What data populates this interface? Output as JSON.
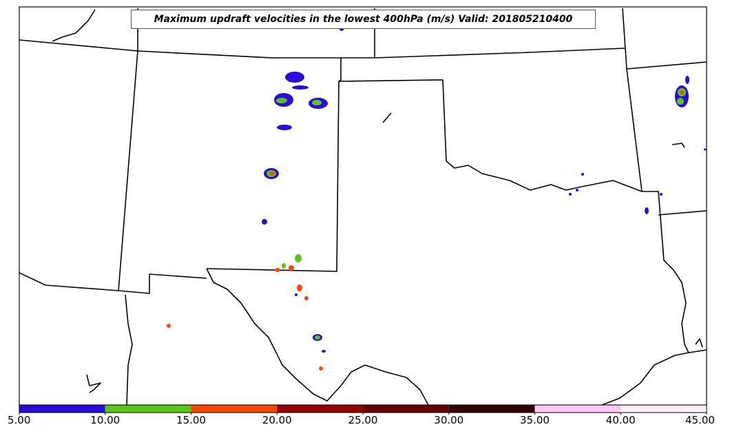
{
  "title": "Maximum updraft velocities in the lowest 400hPa (m/s) Valid: 201805210400",
  "colorbar": {
    "ticks": [
      "5.00",
      "10.00",
      "15.00",
      "20.00",
      "25.00",
      "30.00",
      "35.00",
      "40.00",
      "45.00"
    ],
    "bins": [
      {
        "range": [
          5,
          10
        ],
        "color": "#2a0be0"
      },
      {
        "range": [
          10,
          15
        ],
        "color": "#58c814"
      },
      {
        "range": [
          15,
          20
        ],
        "color": "#ff4500"
      },
      {
        "range": [
          20,
          25
        ],
        "color": "#990000"
      },
      {
        "range": [
          25,
          30
        ],
        "color": "#660000"
      },
      {
        "range": [
          30,
          35
        ],
        "color": "#330000"
      },
      {
        "range": [
          35,
          40
        ],
        "color": "#ffc8f5"
      },
      {
        "range": [
          40,
          45
        ],
        "color": "#fff0fb"
      }
    ]
  },
  "colors": {
    "boundary": "#000000",
    "background": "#ffffff"
  }
}
